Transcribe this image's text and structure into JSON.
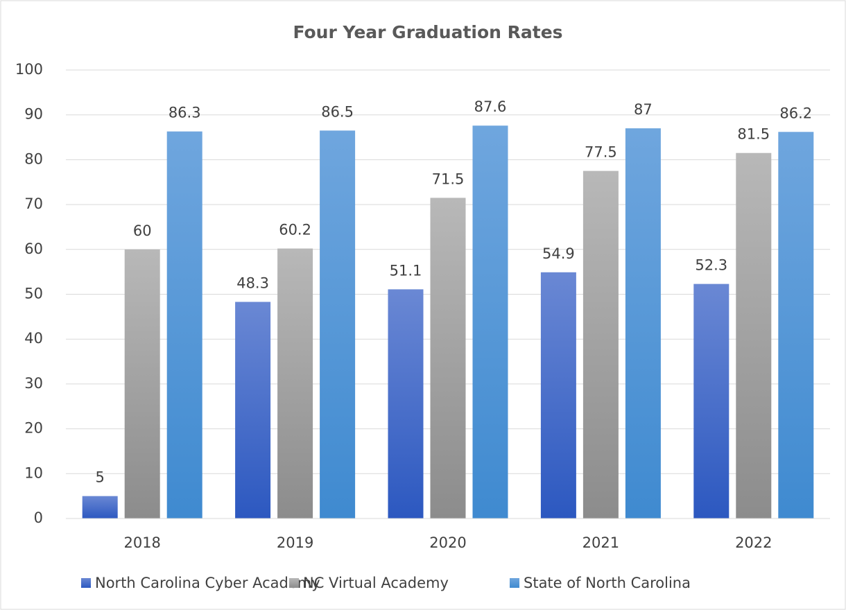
{
  "chart_data": {
    "type": "bar",
    "title": "Four Year Graduation Rates",
    "categories": [
      "2018",
      "2019",
      "2020",
      "2021",
      "2022"
    ],
    "series": [
      {
        "name": "North Carolina Cyber Academy",
        "color": "#3a66c8",
        "values": [
          5,
          48.3,
          51.1,
          54.9,
          52.3
        ]
      },
      {
        "name": "NC Virtual Academy",
        "color": "#a0a0a0",
        "values": [
          60,
          60.2,
          71.5,
          77.5,
          81.5
        ]
      },
      {
        "name": "State of North Carolina",
        "color": "#4a96da",
        "values": [
          86.3,
          86.5,
          87.6,
          87,
          86.2
        ]
      }
    ],
    "ylim": [
      0,
      100
    ],
    "yticks": [
      0,
      10,
      20,
      30,
      40,
      50,
      60,
      70,
      80,
      90,
      100
    ],
    "grid": true,
    "legend": "bottom"
  }
}
